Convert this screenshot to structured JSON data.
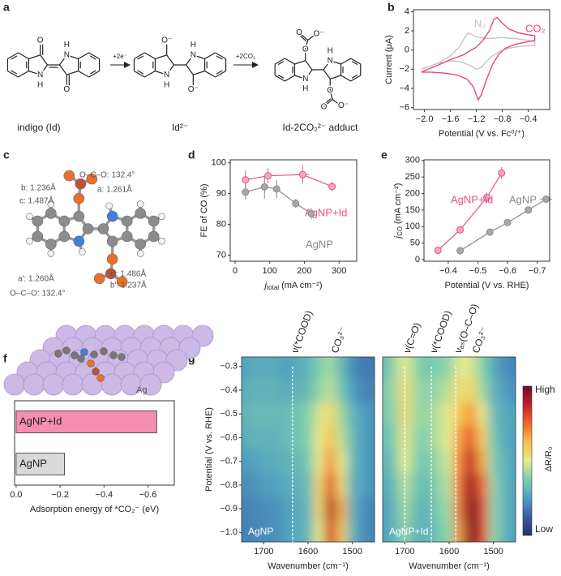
{
  "panel_labels": [
    "a",
    "b",
    "c",
    "d",
    "e",
    "f",
    "g"
  ],
  "scheme": {
    "arrows": [
      "+2e⁻",
      "+2CO₂"
    ],
    "captions": [
      "indigo (Id)",
      "Id²⁻",
      "Id-2CO₂²⁻ adduct"
    ],
    "atoms": [
      [
        "O",
        "N",
        "H",
        "N",
        "H",
        "O"
      ],
      [
        "O⁻",
        "N",
        "H",
        "N",
        "H",
        "O⁻"
      ],
      [
        "O",
        "O",
        "O⁻",
        "N",
        "H",
        "N",
        "H",
        "O",
        "O",
        "O⁻"
      ]
    ]
  },
  "structure": {
    "annotations": [
      "b: 1.236Å",
      "O–C–O: 132.4°",
      "a: 1.261Å",
      "c: 1.487Å",
      "a′: 1.260Å",
      "c′: 1.486Å",
      "b′: 1.237Å",
      "O–C–O: 132.4°"
    ]
  },
  "lattice": {
    "label": "Ag"
  },
  "chart_data": [
    {
      "type": "line",
      "x_label": "Potential (V vs. Fc⁰/⁺)",
      "y_label": "Current (μA)",
      "xlim": [
        -2.17,
        -0.07
      ],
      "ylim": [
        -6.2,
        4.2
      ],
      "xticks": [
        {
          "value": -2.0,
          "label": "−2.0"
        },
        {
          "value": -1.6,
          "label": "−1.6"
        },
        {
          "value": -1.2,
          "label": "−1.2"
        },
        {
          "value": -0.8,
          "label": "−0.8"
        },
        {
          "value": -0.4,
          "label": "−0.4"
        }
      ],
      "yticks": [
        {
          "value": -6,
          "label": "−6"
        },
        {
          "value": -4,
          "label": "−4"
        },
        {
          "value": -2,
          "label": "−2"
        },
        0,
        2,
        4
      ],
      "series": [
        {
          "name": "N₂",
          "color": "#c4c4c4",
          "x": [
            -2.05,
            -1.8,
            -1.6,
            -1.45,
            -1.38,
            -1.32,
            -1.25,
            -1.15,
            -1.0,
            -0.8,
            -0.6,
            -0.4,
            -0.3,
            -0.3,
            -0.5,
            -0.7,
            -0.85,
            -0.95,
            -1.05,
            -1.12,
            -1.2,
            -1.3,
            -1.45,
            -1.6,
            -1.8,
            -2.05
          ],
          "values": [
            -2.0,
            -1.4,
            -0.6,
            0.4,
            1.3,
            1.8,
            1.5,
            1.3,
            1.2,
            1.3,
            1.2,
            1.0,
            0.9,
            0.5,
            0.4,
            0.2,
            -0.2,
            -0.6,
            -1.2,
            -1.8,
            -2.0,
            -1.6,
            -1.2,
            -1.1,
            -1.4,
            -2.0
          ]
        },
        {
          "name": "CO₂",
          "color": "#e8467c",
          "x": [
            -2.05,
            -1.8,
            -1.6,
            -1.4,
            -1.2,
            -1.1,
            -1.0,
            -0.93,
            -0.88,
            -0.8,
            -0.7,
            -0.55,
            -0.4,
            -0.3,
            -0.3,
            -0.45,
            -0.6,
            -0.75,
            -0.85,
            -0.95,
            -1.05,
            -1.12,
            -1.17,
            -1.25,
            -1.35,
            -1.5,
            -1.7,
            -1.9,
            -2.05
          ],
          "values": [
            -2.3,
            -1.6,
            -1.0,
            -0.5,
            0.3,
            1.0,
            2.0,
            3.2,
            3.4,
            2.8,
            2.2,
            1.8,
            1.6,
            1.5,
            1.0,
            0.8,
            0.6,
            0.2,
            -0.4,
            -1.5,
            -3.2,
            -4.6,
            -5.2,
            -3.8,
            -3.0,
            -2.6,
            -2.4,
            -2.3,
            -2.3
          ]
        }
      ]
    },
    {
      "type": "scatter",
      "x_label": {
        "symbol": "j",
        "subscript": "total",
        "unit": "(mA cm⁻²)"
      },
      "y_label": "FE of CO (%)",
      "xlim": [
        -14,
        351
      ],
      "ylim": [
        68,
        101
      ],
      "xticks": [
        0,
        100,
        200,
        300
      ],
      "yticks": [
        70,
        80,
        90,
        100
      ],
      "series": [
        {
          "name": "AgNP+Id",
          "color": "#e8508a",
          "marker_color": "#f6a8c4",
          "x": [
            30,
            95,
            195,
            280
          ],
          "values": [
            94.5,
            95.8,
            96.2,
            92.3
          ],
          "xerr": [
            3,
            10,
            18,
            12
          ],
          "yerr": [
            3,
            2.5,
            3,
            1.5
          ]
        },
        {
          "name": "AgNP",
          "color": "#8a8a8a",
          "marker_color": "#a8a8a8",
          "x": [
            30,
            85,
            120,
            175,
            220
          ],
          "values": [
            90.5,
            92.2,
            91.5,
            86.8,
            83.5
          ],
          "xerr": [
            2,
            6,
            8,
            6,
            8
          ],
          "yerr": [
            2.5,
            3.8,
            3,
            1.5,
            1.8
          ]
        }
      ]
    },
    {
      "type": "scatter",
      "x_label": "Potential (V vs. RHE)",
      "y_label": {
        "symbol": "j",
        "subscript": "CO",
        "unit": "(mA cm⁻²)"
      },
      "xlim": [
        -0.318,
        -0.742
      ],
      "ylim": [
        -5,
        302
      ],
      "xticks": [
        {
          "value": -0.4,
          "label": "−0.4"
        },
        {
          "value": -0.5,
          "label": "−0.5"
        },
        {
          "value": -0.6,
          "label": "−0.6"
        },
        {
          "value": -0.7,
          "label": "−0.7"
        }
      ],
      "yticks": [
        0,
        50,
        100,
        150,
        200,
        250,
        300
      ],
      "series": [
        {
          "name": "AgNP+Id",
          "color": "#e8508a",
          "marker_color": "#f6a8c4",
          "x": [
            -0.365,
            -0.44,
            -0.53,
            -0.58
          ],
          "values": [
            28,
            90,
            188,
            262
          ],
          "xerr": [
            0.01,
            0.005,
            0.01,
            0.005
          ],
          "yerr": [
            3,
            12,
            15,
            18
          ]
        },
        {
          "name": "AgNP",
          "color": "#8a8a8a",
          "marker_color": "#a8a8a8",
          "x": [
            -0.44,
            -0.54,
            -0.6,
            -0.67,
            -0.73
          ],
          "values": [
            27,
            83,
            112,
            150,
            183
          ],
          "xerr": [
            0.01,
            0.005,
            0.01,
            0.01,
            0.02
          ],
          "yerr": [
            3,
            3,
            5,
            8,
            10
          ]
        }
      ]
    },
    {
      "type": "bar",
      "orientation": "horizontal",
      "x_label": "Adsorption energy of *CO₂⁻ (eV)",
      "categories": [
        "AgNP+Id",
        "AgNP"
      ],
      "values": [
        -0.64,
        -0.22
      ],
      "colors": [
        "#f48fb1",
        "#d9d9d9"
      ],
      "xlim": [
        0.007,
        -0.72
      ],
      "xticks": [
        {
          "value": 0,
          "label": "0.0"
        },
        {
          "value": -0.2,
          "label": "−0.2"
        },
        {
          "value": -0.4,
          "label": "−0.4"
        },
        {
          "value": -0.6,
          "label": "−0.6"
        }
      ]
    },
    {
      "type": "heatmap",
      "label": "AgNP",
      "x_label": "Wavenumber (cm⁻¹)",
      "y_label": "Potential (V vs. RHE)",
      "x": [
        1750,
        1725,
        1700,
        1675,
        1650,
        1625,
        1600,
        1575,
        1550,
        1525,
        1500,
        1475,
        1450
      ],
      "y": [
        -1.0,
        -0.9,
        -0.8,
        -0.7,
        -0.6,
        -0.5,
        -0.4,
        -0.3
      ],
      "values": [
        [
          0.2,
          0.2,
          0.22,
          0.22,
          0.25,
          0.28,
          0.3,
          0.5,
          0.85,
          0.6,
          0.3,
          0.22,
          0.2
        ],
        [
          0.2,
          0.2,
          0.22,
          0.22,
          0.25,
          0.28,
          0.3,
          0.55,
          0.9,
          0.65,
          0.3,
          0.22,
          0.2
        ],
        [
          0.22,
          0.22,
          0.25,
          0.25,
          0.28,
          0.3,
          0.32,
          0.55,
          0.8,
          0.55,
          0.3,
          0.25,
          0.22
        ],
        [
          0.25,
          0.25,
          0.28,
          0.28,
          0.3,
          0.32,
          0.35,
          0.5,
          0.7,
          0.5,
          0.32,
          0.25,
          0.22
        ],
        [
          0.28,
          0.3,
          0.3,
          0.3,
          0.32,
          0.35,
          0.38,
          0.5,
          0.62,
          0.45,
          0.32,
          0.25,
          0.22
        ],
        [
          0.3,
          0.32,
          0.32,
          0.32,
          0.32,
          0.35,
          0.38,
          0.48,
          0.55,
          0.42,
          0.3,
          0.25,
          0.22
        ],
        [
          0.28,
          0.3,
          0.3,
          0.3,
          0.28,
          0.3,
          0.32,
          0.4,
          0.45,
          0.35,
          0.25,
          0.2,
          0.2
        ],
        [
          0.25,
          0.28,
          0.28,
          0.28,
          0.25,
          0.28,
          0.3,
          0.38,
          0.42,
          0.32,
          0.22,
          0.18,
          0.18
        ]
      ],
      "xlim": [
        1750,
        1450
      ],
      "ylim": [
        -1.04,
        -0.26
      ],
      "xticks": [
        1700,
        1600,
        1500
      ],
      "yticks": [
        {
          "value": -1.0,
          "label": "−1.0"
        },
        {
          "value": -0.9,
          "label": "−0.9"
        },
        {
          "value": -0.8,
          "label": "−0.8"
        },
        {
          "value": -0.7,
          "label": "−0.7"
        },
        {
          "value": -0.6,
          "label": "−0.6"
        },
        {
          "value": -0.5,
          "label": "−0.5"
        },
        {
          "value": -0.4,
          "label": "−0.4"
        },
        {
          "value": -0.3,
          "label": "−0.3"
        }
      ],
      "annotations": [
        {
          "text": "ν(*COOD)",
          "x": 1635,
          "dashed": true
        },
        {
          "text": "CO₃²⁻",
          "x": 1545,
          "dashed": false
        }
      ]
    },
    {
      "type": "heatmap",
      "label": "AgNP+Id",
      "x_label": "Wavenumber (cm⁻¹)",
      "x": [
        1750,
        1725,
        1700,
        1675,
        1650,
        1625,
        1600,
        1575,
        1550,
        1525,
        1500,
        1475,
        1450
      ],
      "y": [
        -1.0,
        -0.9,
        -0.8,
        -0.7,
        -0.6,
        -0.5,
        -0.4,
        -0.3
      ],
      "values": [
        [
          0.25,
          0.3,
          0.4,
          0.3,
          0.3,
          0.35,
          0.4,
          0.7,
          1.0,
          0.8,
          0.4,
          0.3,
          0.25
        ],
        [
          0.25,
          0.3,
          0.42,
          0.32,
          0.3,
          0.38,
          0.42,
          0.75,
          1.0,
          0.8,
          0.4,
          0.3,
          0.25
        ],
        [
          0.28,
          0.32,
          0.45,
          0.35,
          0.32,
          0.4,
          0.45,
          0.75,
          0.95,
          0.75,
          0.4,
          0.3,
          0.25
        ],
        [
          0.3,
          0.35,
          0.5,
          0.38,
          0.35,
          0.42,
          0.48,
          0.72,
          0.88,
          0.65,
          0.38,
          0.3,
          0.25
        ],
        [
          0.32,
          0.38,
          0.52,
          0.4,
          0.38,
          0.45,
          0.5,
          0.68,
          0.78,
          0.58,
          0.35,
          0.28,
          0.25
        ],
        [
          0.35,
          0.4,
          0.55,
          0.42,
          0.4,
          0.45,
          0.5,
          0.62,
          0.68,
          0.5,
          0.32,
          0.28,
          0.25
        ],
        [
          0.35,
          0.42,
          0.55,
          0.42,
          0.38,
          0.42,
          0.45,
          0.55,
          0.55,
          0.42,
          0.3,
          0.25,
          0.22
        ],
        [
          0.32,
          0.4,
          0.5,
          0.4,
          0.35,
          0.38,
          0.4,
          0.5,
          0.48,
          0.38,
          0.28,
          0.22,
          0.2
        ]
      ],
      "xlim": [
        1750,
        1450
      ],
      "ylim": [
        -1.04,
        -0.26
      ],
      "xticks": [
        1700,
        1600,
        1500
      ],
      "annotations": [
        {
          "text": "ν(C=O)",
          "x": 1700,
          "dashed": true
        },
        {
          "text": "ν(*COOD)",
          "x": 1640,
          "dashed": true
        },
        {
          "text": "νₐₛ(O–C–O)",
          "x": 1585,
          "dashed": true
        },
        {
          "text": "CO₃²⁻",
          "x": 1545,
          "dashed": false
        }
      ],
      "colorbar": {
        "high": "High",
        "low": "Low",
        "title": "ΔR/R₀",
        "colorscale": [
          "#2d2f6b",
          "#3b5ba8",
          "#4fa0c0",
          "#7ccfae",
          "#e8ea8a",
          "#f6c04a",
          "#ee6a2a",
          "#c41f2a",
          "#6b0a2a"
        ]
      }
    }
  ]
}
